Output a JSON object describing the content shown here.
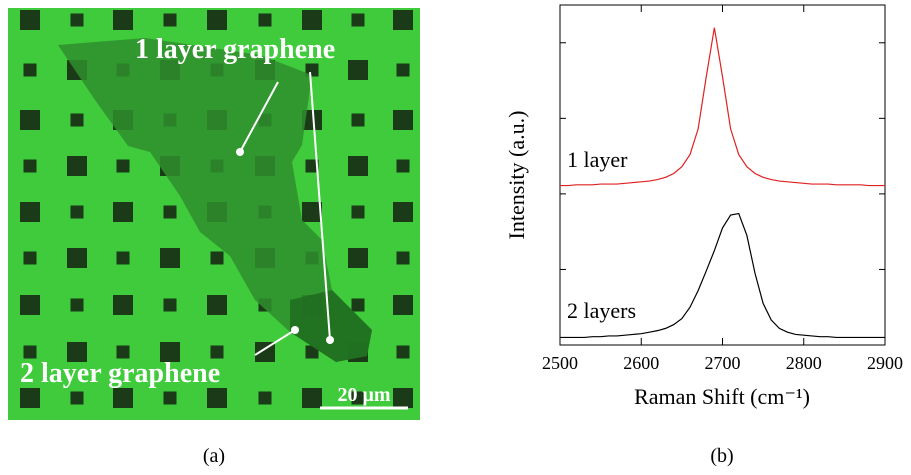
{
  "panel_a": {
    "label_1_layer": "1 layer graphene",
    "label_2_layer": "2 layer graphene",
    "scale_bar": "20 μm",
    "caption": "(a)"
  },
  "chart_data": {
    "type": "line",
    "caption": "(b)",
    "xlabel": "Raman Shift (cm⁻¹)",
    "ylabel": "Intensity (a.u.)",
    "annotations": [
      "1 layer",
      "2 layers"
    ],
    "x": [
      2500,
      2510,
      2520,
      2530,
      2540,
      2550,
      2560,
      2570,
      2580,
      2590,
      2600,
      2610,
      2620,
      2630,
      2640,
      2650,
      2660,
      2670,
      2680,
      2690,
      2700,
      2710,
      2720,
      2730,
      2740,
      2750,
      2760,
      2770,
      2780,
      2790,
      2800,
      2810,
      2820,
      2830,
      2840,
      2850,
      2860,
      2870,
      2880,
      2890,
      2900
    ],
    "series": [
      {
        "color": "#e02020",
        "values": [
          2.11,
          2.11,
          2.12,
          2.12,
          2.12,
          2.13,
          2.13,
          2.13,
          2.14,
          2.15,
          2.16,
          2.17,
          2.19,
          2.22,
          2.27,
          2.36,
          2.52,
          2.86,
          3.55,
          4.2,
          3.55,
          2.86,
          2.52,
          2.36,
          2.27,
          2.22,
          2.19,
          2.17,
          2.16,
          2.15,
          2.14,
          2.13,
          2.13,
          2.13,
          2.12,
          2.12,
          2.12,
          2.12,
          2.11,
          2.11,
          2.11
        ]
      },
      {
        "color": "#000000",
        "values": [
          0.1,
          0.1,
          0.1,
          0.1,
          0.11,
          0.11,
          0.12,
          0.12,
          0.13,
          0.14,
          0.15,
          0.17,
          0.19,
          0.22,
          0.27,
          0.35,
          0.5,
          0.72,
          0.98,
          1.25,
          1.55,
          1.72,
          1.74,
          1.45,
          0.95,
          0.55,
          0.33,
          0.22,
          0.17,
          0.14,
          0.13,
          0.12,
          0.11,
          0.11,
          0.1,
          0.1,
          0.1,
          0.1,
          0.1,
          0.1,
          0.1
        ]
      }
    ],
    "xlim": [
      2500,
      2900
    ],
    "xticks": [
      2500,
      2600,
      2700,
      2800,
      2900
    ],
    "ylim": [
      0,
      4.5
    ],
    "yticks": [
      1,
      2,
      3,
      4
    ]
  }
}
